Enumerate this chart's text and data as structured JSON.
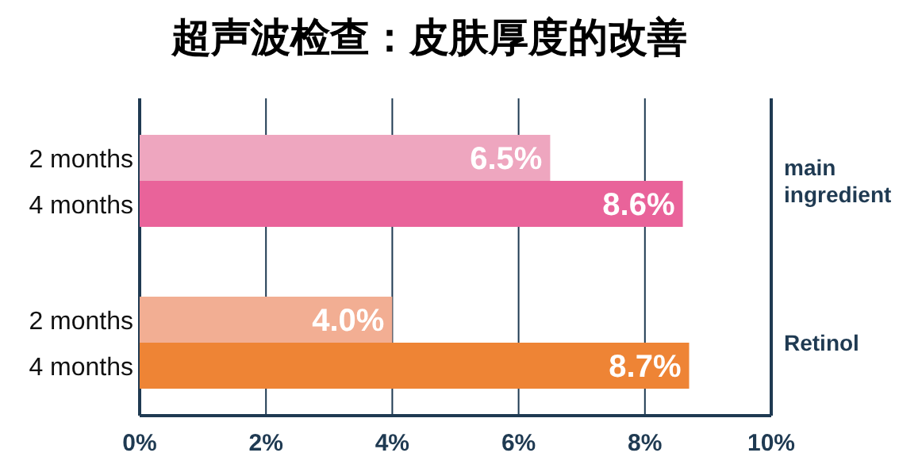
{
  "chart_data": {
    "type": "bar",
    "orientation": "horizontal",
    "title": "超声波检查：皮肤厚度的改善",
    "categories": [
      "2 months",
      "4 months",
      "2 months",
      "4 months"
    ],
    "values": [
      6.5,
      8.6,
      4.0,
      8.7
    ],
    "colors": [
      "#eea6bf",
      "#e9639a",
      "#f2ae93",
      "#ee8435"
    ],
    "value_labels": [
      "6.5%",
      "8.6%",
      "4.0%",
      "8.7%"
    ],
    "xlim": [
      0,
      10
    ],
    "xticks": [
      {
        "value": 0,
        "label": "0%"
      },
      {
        "value": 2,
        "label": "2%"
      },
      {
        "value": 4,
        "label": "4%"
      },
      {
        "value": 6,
        "label": "6%"
      },
      {
        "value": 8,
        "label": "8%"
      },
      {
        "value": 10,
        "label": "10%"
      }
    ],
    "grid": "x",
    "annotations": [
      "main ingredient",
      "Retinol"
    ]
  }
}
